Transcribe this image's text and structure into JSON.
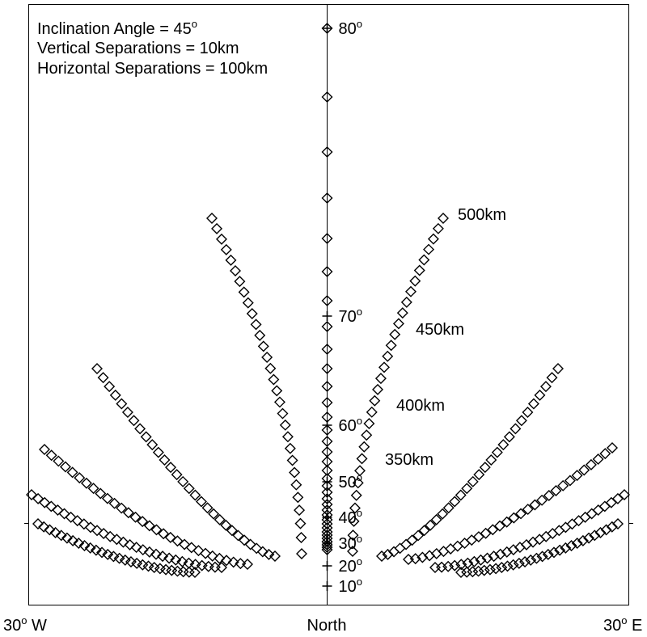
{
  "chart_data": {
    "type": "scatter",
    "annotation_lines": [
      "Inclination Angle = 45",
      "Vertical Separations = 10km",
      "Horizontal Separations = 100km"
    ],
    "annotation_superscript": "o",
    "x_ticks": [
      {
        "label": "30",
        "sup": "o",
        "suffix": " W",
        "value": -30
      },
      {
        "label": "North",
        "value": 0
      },
      {
        "label": "30",
        "sup": "o",
        "suffix": " E",
        "value": 30
      }
    ],
    "zenith_ticks": [
      {
        "label": "10",
        "sup": "o",
        "value": 10
      },
      {
        "label": "20",
        "sup": "o",
        "value": 20
      },
      {
        "label": "30",
        "sup": "o",
        "value": 30
      },
      {
        "label": "40",
        "sup": "o",
        "value": 40
      },
      {
        "label": "50",
        "sup": "o",
        "value": 50
      },
      {
        "label": "60",
        "sup": "o",
        "value": 60
      },
      {
        "label": "70",
        "sup": "o",
        "value": 70
      },
      {
        "label": "80",
        "sup": "o",
        "value": 80
      }
    ],
    "series": [
      {
        "name": "350km"
      },
      {
        "name": "400km"
      },
      {
        "name": "450km"
      },
      {
        "name": "500km"
      }
    ],
    "grid": false,
    "marker": "diamond"
  }
}
